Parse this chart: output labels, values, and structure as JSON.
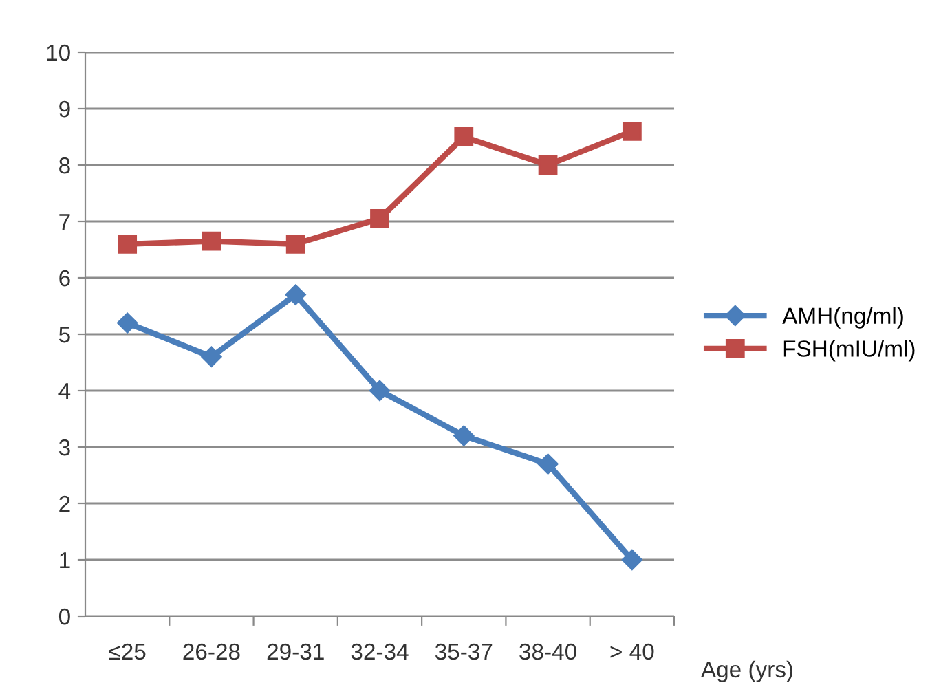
{
  "chart_data": {
    "type": "line",
    "xlabel": "Age (yrs)",
    "categories": [
      "≤25",
      "26-28",
      "29-31",
      "32-34",
      "35-37",
      "38-40",
      "> 40"
    ],
    "series": [
      {
        "name": "AMH(ng/ml)",
        "color": "#4a7ebb",
        "marker": "diamond",
        "values": [
          5.2,
          4.6,
          5.7,
          4.0,
          3.2,
          2.7,
          1.0
        ]
      },
      {
        "name": "FSH(mIU/ml)",
        "color": "#be4b48",
        "marker": "square",
        "values": [
          6.6,
          6.65,
          6.6,
          7.05,
          8.5,
          8.0,
          8.6
        ]
      }
    ],
    "ylim": [
      0,
      10
    ],
    "yticks": [
      0,
      1,
      2,
      3,
      4,
      5,
      6,
      7,
      8,
      9,
      10
    ],
    "grid": "y",
    "legend": "right"
  }
}
